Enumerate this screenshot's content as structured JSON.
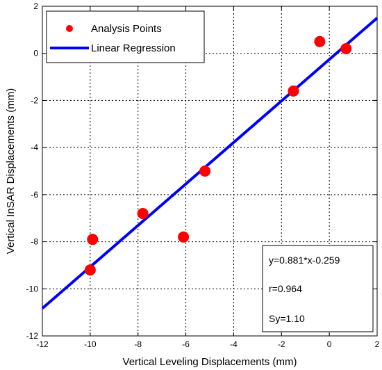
{
  "chart_data": {
    "type": "scatter",
    "xlabel": "Vertical Leveling Displacements (mm)",
    "ylabel": "Vertical InSAR Displacements  (mm)",
    "xlim": [
      -12,
      2
    ],
    "ylim": [
      -12,
      2
    ],
    "xticks": [
      -12,
      -10,
      -8,
      -6,
      -4,
      -2,
      0,
      2
    ],
    "yticks": [
      -12,
      -10,
      -8,
      -6,
      -4,
      -2,
      0,
      2
    ],
    "grid": true,
    "legend_position": "top-left",
    "series": [
      {
        "name": "Analysis Points",
        "kind": "scatter",
        "color": "#ff0000",
        "points": [
          {
            "x": -10.0,
            "y": -9.2
          },
          {
            "x": -9.9,
            "y": -7.9
          },
          {
            "x": -7.8,
            "y": -6.8
          },
          {
            "x": -6.1,
            "y": -7.8
          },
          {
            "x": -5.2,
            "y": -5.0
          },
          {
            "x": -1.5,
            "y": -1.6
          },
          {
            "x": -0.4,
            "y": 0.5
          },
          {
            "x": 0.7,
            "y": 0.2
          }
        ]
      },
      {
        "name": "Linear Regression",
        "kind": "line",
        "color": "#0000ff",
        "slope": 0.881,
        "intercept": -0.259,
        "x_range": [
          -12,
          2
        ]
      }
    ],
    "annotation": {
      "lines": [
        "y=0.881*x-0.259",
        "r=0.964",
        "Sy=1.10"
      ],
      "position": "bottom-right"
    }
  }
}
